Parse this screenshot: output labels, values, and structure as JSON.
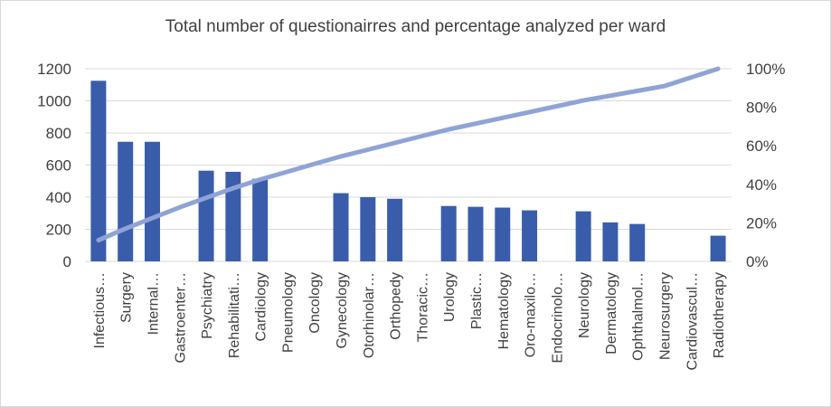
{
  "chart_data": {
    "type": "bar",
    "title": "Total number of questionairres and percentage analyzed per ward",
    "categories": [
      "Infectious…",
      "Surgery",
      "Internal…",
      "Gastroenter…",
      "Psychiatry",
      "Rehabilitati…",
      "Cardiology",
      "Pneumology",
      "Oncology",
      "Gynecology",
      "Otorhinolar…",
      "Orthopedy",
      "Thoracic…",
      "Urology",
      "Plastic…",
      "Hematology",
      "Oro-maxilo…",
      "Endocrinolo…",
      "Neurology",
      "Dermatology",
      "Ophthalmol…",
      "Neurosurgery",
      "Cardiovascul…",
      "Radiotherapy"
    ],
    "series": [
      {
        "type": "bar",
        "axis": "left",
        "values": [
          1125,
          745,
          745,
          0,
          565,
          558,
          515,
          0,
          0,
          425,
          400,
          390,
          0,
          345,
          340,
          335,
          318,
          0,
          312,
          243,
          233,
          0,
          0,
          160
        ],
        "color": "#3a5dab"
      },
      {
        "type": "line",
        "axis": "right",
        "values": [
          11,
          17,
          22.5,
          28,
          33,
          38,
          42.5,
          46.5,
          50.5,
          54.5,
          58,
          61.5,
          65,
          68.5,
          71.5,
          74.5,
          77.5,
          80.5,
          83.5,
          86,
          88.5,
          91,
          95.5,
          100
        ],
        "color": "#8fa3d6"
      }
    ],
    "y_left": {
      "range": [
        0,
        1200
      ],
      "ticks": [
        "0",
        "200",
        "400",
        "600",
        "800",
        "1000",
        "1200"
      ]
    },
    "y_right": {
      "range": [
        0,
        100
      ],
      "ticks": [
        "0%",
        "20%",
        "40%",
        "60%",
        "80%",
        "100%"
      ]
    },
    "grid": true,
    "legend": "none"
  }
}
